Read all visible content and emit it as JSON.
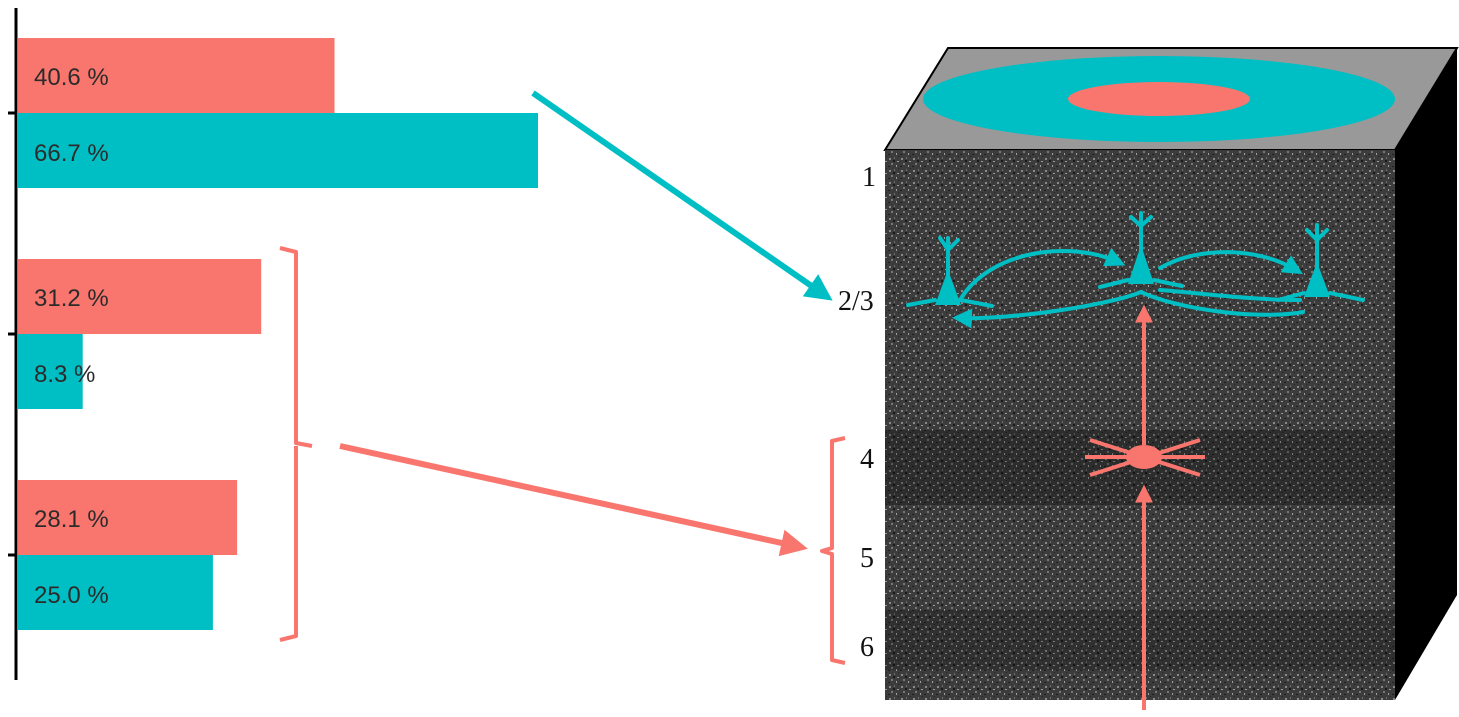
{
  "colors": {
    "salmon": "#F8766D",
    "teal": "#00BFC4",
    "axis": "#000000",
    "block_top": "#999999",
    "block_side": "#000000",
    "block_front": "#3a3a3a"
  },
  "chart_data": {
    "type": "bar",
    "orientation": "horizontal",
    "groups": [
      {
        "bars": [
          {
            "series_color": "salmon",
            "value": 40.6,
            "label": "40.6 %"
          },
          {
            "series_color": "teal",
            "value": 66.7,
            "label": "66.7 %"
          }
        ]
      },
      {
        "bars": [
          {
            "series_color": "salmon",
            "value": 31.2,
            "label": "31.2 %"
          },
          {
            "series_color": "teal",
            "value": 8.3,
            "label": "8.3 %"
          }
        ]
      },
      {
        "bars": [
          {
            "series_color": "salmon",
            "value": 28.1,
            "label": "28.1 %"
          },
          {
            "series_color": "teal",
            "value": 25.0,
            "label": "25.0 %"
          }
        ]
      }
    ]
  },
  "layer_labels": [
    "1",
    "2/3",
    "4",
    "5",
    "6"
  ]
}
